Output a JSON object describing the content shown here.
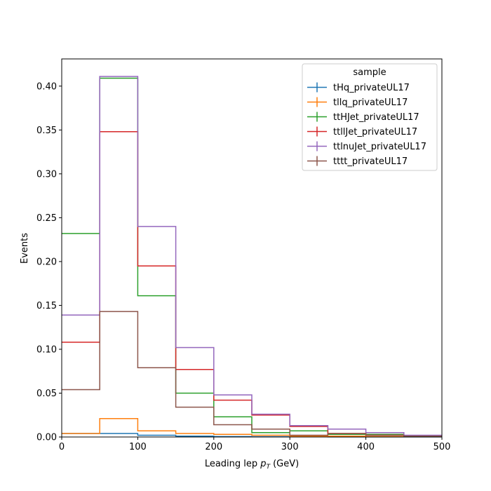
{
  "chart_data": {
    "type": "step",
    "xlabel": "Leading lep",
    "xlabel_math_base": "p",
    "xlabel_math_sub": "T",
    "xlabel_unit": "(GeV)",
    "ylabel": "Events",
    "xlim": [
      0,
      500
    ],
    "ylim": [
      0,
      0.431
    ],
    "xticks": [
      0,
      100,
      200,
      300,
      400,
      500
    ],
    "xtick_labels": [
      "0",
      "100",
      "200",
      "300",
      "400",
      "500"
    ],
    "yticks": [
      0,
      0.05,
      0.1,
      0.15,
      0.2,
      0.25,
      0.3,
      0.35,
      0.4
    ],
    "ytick_labels": [
      "0.00",
      "0.05",
      "0.10",
      "0.15",
      "0.20",
      "0.25",
      "0.30",
      "0.35",
      "0.40"
    ],
    "bin_edges": [
      0,
      50,
      100,
      150,
      200,
      250,
      300,
      350,
      400,
      450,
      500
    ],
    "legend_title": "sample",
    "legend_position": "upper right",
    "series": [
      {
        "name": "tHq_privateUL17",
        "color": "#1f77b4",
        "values": [
          0.004,
          0.004,
          0.002,
          0.001,
          0.0005,
          0.0003,
          0.0002,
          0.0001,
          0.0001,
          0.0001
        ]
      },
      {
        "name": "tllq_privateUL17",
        "color": "#ff7f0e",
        "values": [
          0.004,
          0.021,
          0.007,
          0.004,
          0.003,
          0.002,
          0.001,
          0.001,
          0.0005,
          0.0005
        ]
      },
      {
        "name": "ttHJet_privateUL17",
        "color": "#2ca02c",
        "values": [
          0.232,
          0.409,
          0.161,
          0.05,
          0.023,
          0.005,
          0.007,
          0.003,
          0.003,
          0.001
        ]
      },
      {
        "name": "ttllJet_privateUL17",
        "color": "#d62728",
        "values": [
          0.108,
          0.348,
          0.195,
          0.077,
          0.042,
          0.025,
          0.012,
          0.004,
          0.002,
          0.001
        ]
      },
      {
        "name": "ttlnuJet_privateUL17",
        "color": "#9467bd",
        "values": [
          0.139,
          0.411,
          0.24,
          0.102,
          0.048,
          0.026,
          0.013,
          0.009,
          0.005,
          0.002
        ]
      },
      {
        "name": "tttt_privateUL17",
        "color": "#8c564b",
        "values": [
          0.054,
          0.143,
          0.079,
          0.034,
          0.014,
          0.009,
          0.002,
          0.004,
          0.002,
          0.001
        ]
      }
    ]
  }
}
